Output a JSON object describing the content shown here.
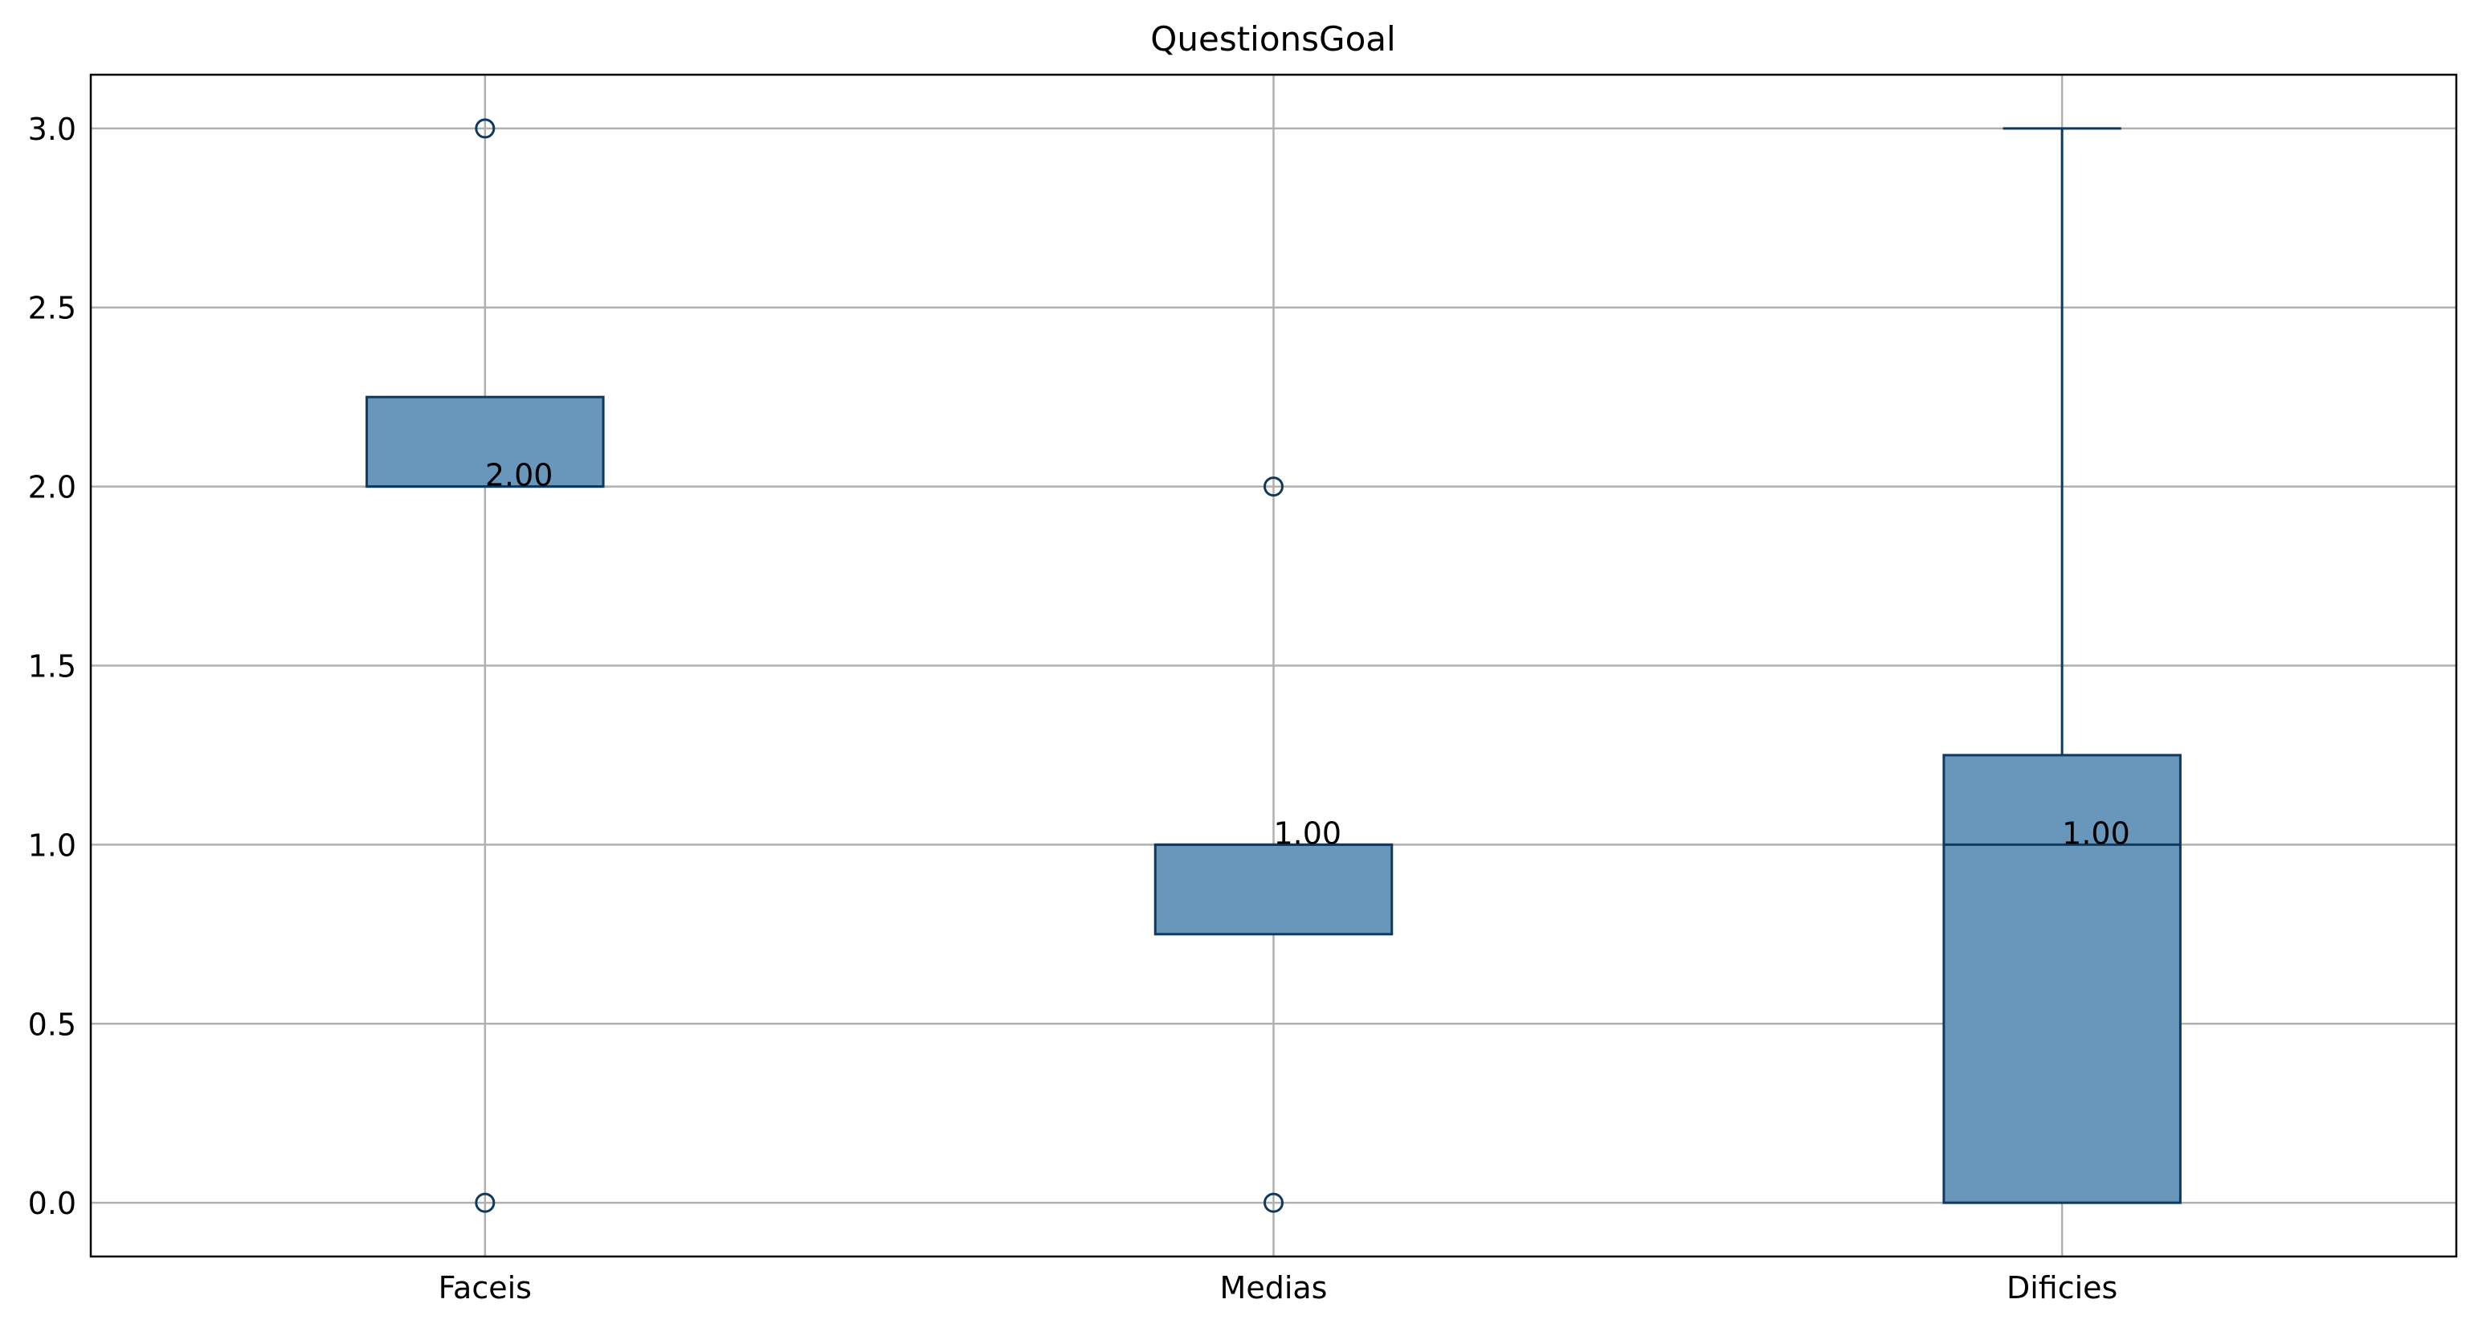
{
  "chart_data": {
    "type": "box",
    "title": "QuestionsGoal",
    "xlabel": "",
    "ylabel": "",
    "categories": [
      "Faceis",
      "Medias",
      "Dificies"
    ],
    "ylim": [
      -0.15,
      3.15
    ],
    "y_ticks": [
      0.0,
      0.5,
      1.0,
      1.5,
      2.0,
      2.5,
      3.0
    ],
    "y_tick_labels": [
      "0.0",
      "0.5",
      "1.0",
      "1.5",
      "2.0",
      "2.5",
      "3.0"
    ],
    "grid": true,
    "boxes": [
      {
        "category": "Faceis",
        "whisker_low": 2.0,
        "q1": 2.0,
        "median": 2.0,
        "q3": 2.25,
        "whisker_high": 2.25,
        "outliers": [
          3.0,
          0.0
        ],
        "median_label": "2.00"
      },
      {
        "category": "Medias",
        "whisker_low": 0.75,
        "q1": 0.75,
        "median": 1.0,
        "q3": 1.0,
        "whisker_high": 1.0,
        "outliers": [
          2.0,
          0.0
        ],
        "median_label": "1.00"
      },
      {
        "category": "Dificies",
        "whisker_low": 0.0,
        "q1": 0.0,
        "median": 1.0,
        "q3": 1.25,
        "whisker_high": 3.0,
        "outliers": [],
        "median_label": "1.00"
      }
    ],
    "colors": {
      "box_fill": "#6897bb",
      "box_edge": "#0e3a5f",
      "grid": "#b0b0b0",
      "axis": "#000000",
      "text": "#000000"
    }
  }
}
